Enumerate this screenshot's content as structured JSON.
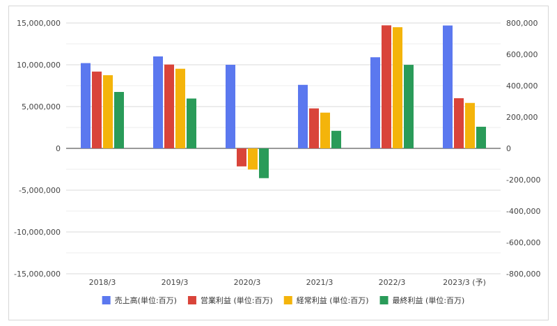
{
  "chart_data": {
    "type": "bar",
    "categories": [
      "2018/3",
      "2019/3",
      "2020/3",
      "2021/3",
      "2022/3",
      "2023/3 (予)"
    ],
    "series": [
      {
        "name": "売上高(単位:百万)",
        "axis": "left",
        "color": "#5b78ef",
        "values": [
          10200000,
          11000000,
          10000000,
          7600000,
          10900000,
          14700000
        ]
      },
      {
        "name": "営業利益 (単位:百万)",
        "axis": "right",
        "color": "#d9443a",
        "values": [
          490000,
          535000,
          -115000,
          255000,
          785000,
          320000
        ]
      },
      {
        "name": "経常利益 (単位:百万)",
        "axis": "right",
        "color": "#f4b40b",
        "values": [
          467000,
          508000,
          -135000,
          228000,
          773000,
          290000
        ]
      },
      {
        "name": "最終利益 (単位:百万)",
        "axis": "right",
        "color": "#2a9b59",
        "values": [
          360000,
          318000,
          -190000,
          112000,
          533000,
          138000
        ]
      }
    ],
    "y_left": {
      "min": -15000000,
      "max": 15000000,
      "ticks": [
        15000000,
        10000000,
        5000000,
        0,
        -5000000,
        -10000000,
        -15000000
      ],
      "tick_labels": [
        "15,000,000",
        "10,000,000",
        "5,000,000",
        "0",
        "-5,000,000",
        "-10,000,000",
        "-15,000,000"
      ]
    },
    "y_right": {
      "min": -800000,
      "max": 800000,
      "ticks": [
        800000,
        600000,
        400000,
        200000,
        0,
        -200000,
        -400000,
        -600000,
        -800000
      ],
      "tick_labels": [
        "800,000",
        "600,000",
        "400,000",
        "200,000",
        "0",
        "-200,000",
        "-400,000",
        "-600,000",
        "-800,000"
      ]
    },
    "grid": true,
    "legend_position": "bottom"
  }
}
